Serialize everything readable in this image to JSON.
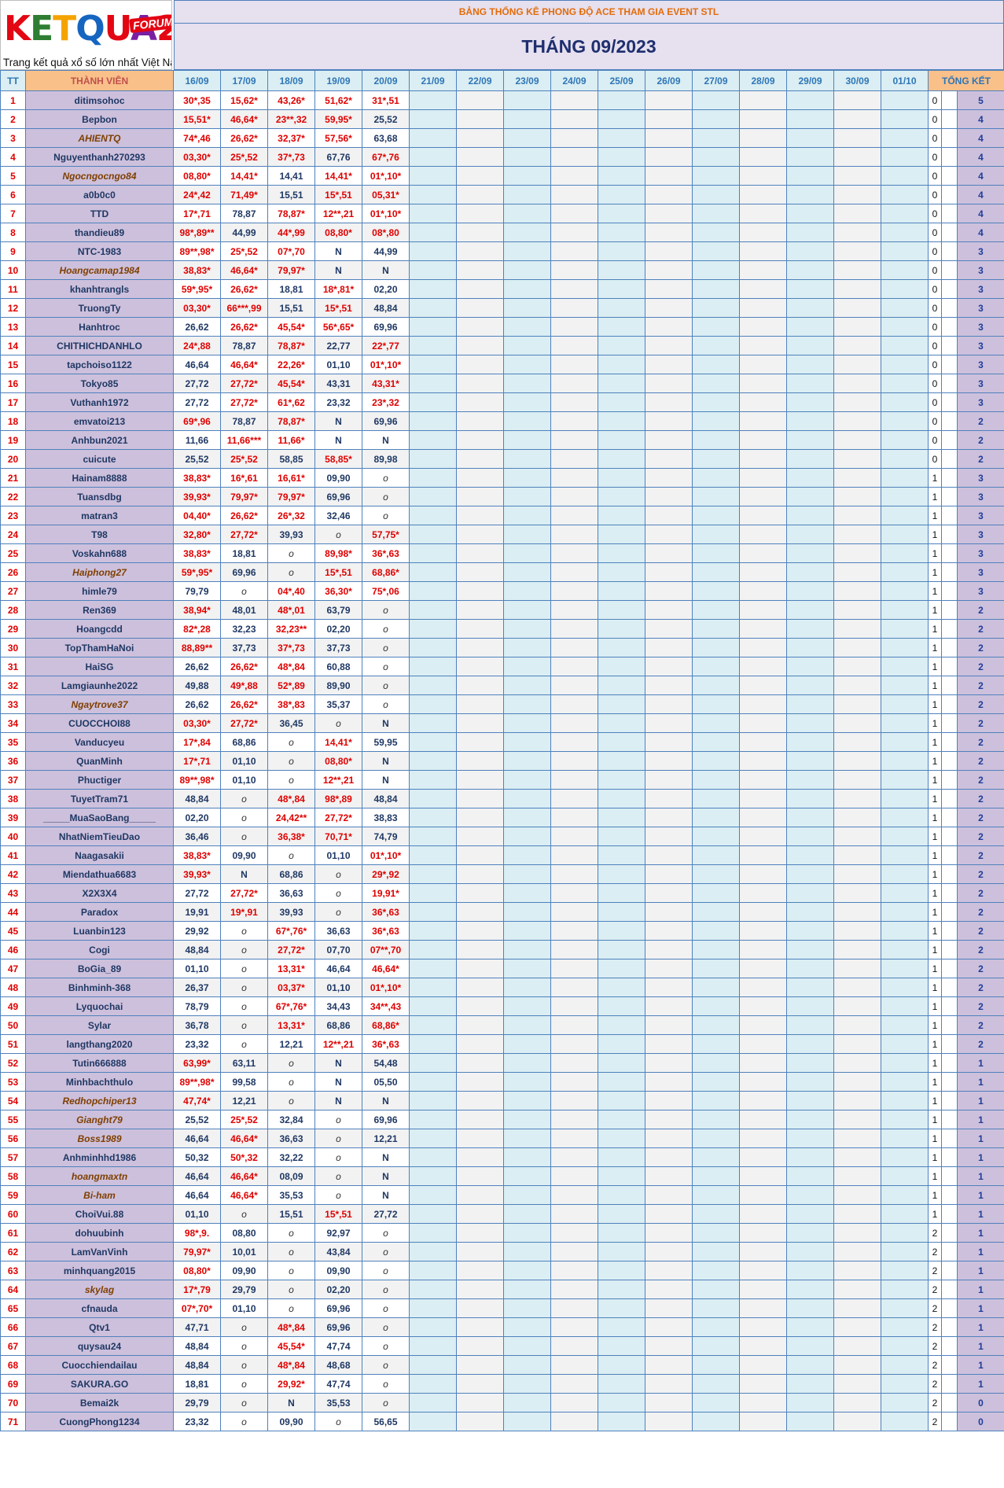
{
  "logo": {
    "text": "KETQUA2",
    "badge": "FORUM",
    "tagline": "Trang kết quả xổ số lớn nhất Việt Nam"
  },
  "top_title": "BẢNG THỐNG KÊ PHONG ĐỘ ACE THAM GIA EVENT STL",
  "month_title": "THÁNG 09/2023",
  "headers": {
    "tt": "TT",
    "member": "THÀNH VIÊN",
    "dates": [
      "16/09",
      "17/09",
      "18/09",
      "19/09",
      "20/09",
      "21/09",
      "22/09",
      "23/09",
      "24/09",
      "25/09",
      "26/09",
      "27/09",
      "28/09",
      "29/09",
      "30/09",
      "01/10"
    ],
    "total": "TỔNG KẾT"
  },
  "colors": {
    "hit": "#e00000",
    "normal": "#1f3864",
    "name_bg": "#cdc0dc",
    "header_orange": "#f9c089"
  },
  "rows": [
    {
      "tt": "1",
      "name": "ditimsohoc",
      "vals": [
        "30*,35",
        "15,62*",
        "43,26*",
        "51,62*",
        "31*,51"
      ],
      "t0": "0",
      "t1": "5"
    },
    {
      "tt": "2",
      "name": "Bepbon",
      "vals": [
        "15,51*",
        "46,64*",
        "23**,32",
        "59,95*",
        "25,52"
      ],
      "t0": "0",
      "t1": "4"
    },
    {
      "tt": "3",
      "name": "AHIENTQ",
      "italic": true,
      "vals": [
        "74*,46",
        "26,62*",
        "32,37*",
        "57,56*",
        "63,68"
      ],
      "t0": "0",
      "t1": "4"
    },
    {
      "tt": "4",
      "name": "Nguyenthanh270293",
      "vals": [
        "03,30*",
        "25*,52",
        "37*,73",
        "67,76",
        "67*,76"
      ],
      "t0": "0",
      "t1": "4"
    },
    {
      "tt": "5",
      "name": "Ngocngocngo84",
      "italic": true,
      "vals": [
        "08,80*",
        "14,41*",
        "14,41",
        "14,41*",
        "01*,10*"
      ],
      "t0": "0",
      "t1": "4"
    },
    {
      "tt": "6",
      "name": "a0b0c0",
      "vals": [
        "24*,42",
        "71,49*",
        "15,51",
        "15*,51",
        "05,31*"
      ],
      "t0": "0",
      "t1": "4"
    },
    {
      "tt": "7",
      "name": "TTD",
      "vals": [
        "17*,71",
        "78,87",
        "78,87*",
        "12**,21",
        "01*,10*"
      ],
      "t0": "0",
      "t1": "4"
    },
    {
      "tt": "8",
      "name": "thandieu89",
      "vals": [
        "98*,89**",
        "44,99",
        "44*,99",
        "08,80*",
        "08*,80"
      ],
      "t0": "0",
      "t1": "4"
    },
    {
      "tt": "9",
      "name": "NTC-1983",
      "vals": [
        "89**,98*",
        "25*,52",
        "07*,70",
        "N",
        "44,99"
      ],
      "t0": "0",
      "t1": "3"
    },
    {
      "tt": "10",
      "name": "Hoangcamap1984",
      "italic": true,
      "vals": [
        "38,83*",
        "46,64*",
        "79,97*",
        "N",
        "N"
      ],
      "t0": "0",
      "t1": "3"
    },
    {
      "tt": "11",
      "name": "khanhtrangls",
      "vals": [
        "59*,95*",
        "26,62*",
        "18,81",
        "18*,81*",
        "02,20"
      ],
      "t0": "0",
      "t1": "3"
    },
    {
      "tt": "12",
      "name": "TruongTy",
      "vals": [
        "03,30*",
        "66***,99",
        "15,51",
        "15*,51",
        "48,84"
      ],
      "t0": "0",
      "t1": "3"
    },
    {
      "tt": "13",
      "name": "Hanhtroc",
      "vals": [
        "26,62",
        "26,62*",
        "45,54*",
        "56*,65*",
        "69,96"
      ],
      "t0": "0",
      "t1": "3"
    },
    {
      "tt": "14",
      "name": "CHITHICHDANHLO",
      "vals": [
        "24*,88",
        "78,87",
        "78,87*",
        "22,77",
        "22*,77"
      ],
      "t0": "0",
      "t1": "3"
    },
    {
      "tt": "15",
      "name": "tapchoiso1122",
      "vals": [
        "46,64",
        "46,64*",
        "22,26*",
        "01,10",
        "01*,10*"
      ],
      "t0": "0",
      "t1": "3"
    },
    {
      "tt": "16",
      "name": "Tokyo85",
      "vals": [
        "27,72",
        "27,72*",
        "45,54*",
        "43,31",
        "43,31*"
      ],
      "t0": "0",
      "t1": "3"
    },
    {
      "tt": "17",
      "name": "Vuthanh1972",
      "vals": [
        "27,72",
        "27,72*",
        "61*,62",
        "23,32",
        "23*,32"
      ],
      "t0": "0",
      "t1": "3"
    },
    {
      "tt": "18",
      "name": "emvatoi213",
      "vals": [
        "69*,96",
        "78,87",
        "78,87*",
        "N",
        "69,96"
      ],
      "t0": "0",
      "t1": "2"
    },
    {
      "tt": "19",
      "name": "Anhbun2021",
      "vals": [
        "11,66",
        "11,66***",
        "11,66*",
        "N",
        "N"
      ],
      "t0": "0",
      "t1": "2"
    },
    {
      "tt": "20",
      "name": "cuicute",
      "vals": [
        "25,52",
        "25*,52",
        "58,85",
        "58,85*",
        "89,98"
      ],
      "t0": "0",
      "t1": "2"
    },
    {
      "tt": "21",
      "name": "Hainam8888",
      "vals": [
        "38,83*",
        "16*,61",
        "16,61*",
        "09,90",
        "o"
      ],
      "t0": "1",
      "t1": "3"
    },
    {
      "tt": "22",
      "name": "Tuansdbg",
      "vals": [
        "39,93*",
        "79,97*",
        "79,97*",
        "69,96",
        "o"
      ],
      "t0": "1",
      "t1": "3"
    },
    {
      "tt": "23",
      "name": "matran3",
      "vals": [
        "04,40*",
        "26,62*",
        "26*,32",
        "32,46",
        "o"
      ],
      "t0": "1",
      "t1": "3"
    },
    {
      "tt": "24",
      "name": "T98",
      "vals": [
        "32,80*",
        "27,72*",
        "39,93",
        "o",
        "57,75*"
      ],
      "t0": "1",
      "t1": "3"
    },
    {
      "tt": "25",
      "name": "Voskahn688",
      "vals": [
        "38,83*",
        "18,81",
        "o",
        "89,98*",
        "36*,63"
      ],
      "t0": "1",
      "t1": "3"
    },
    {
      "tt": "26",
      "name": "Haiphong27",
      "italic": true,
      "vals": [
        "59*,95*",
        "69,96",
        "o",
        "15*,51",
        "68,86*"
      ],
      "t0": "1",
      "t1": "3"
    },
    {
      "tt": "27",
      "name": "himle79",
      "vals": [
        "79,79",
        "o",
        "04*,40",
        "36,30*",
        "75*,06"
      ],
      "t0": "1",
      "t1": "3"
    },
    {
      "tt": "28",
      "name": "Ren369",
      "vals": [
        "38,94*",
        "48,01",
        "48*,01",
        "63,79",
        "o"
      ],
      "t0": "1",
      "t1": "2"
    },
    {
      "tt": "29",
      "name": "Hoangcdd",
      "vals": [
        "82*,28",
        "32,23",
        "32,23**",
        "02,20",
        "o"
      ],
      "t0": "1",
      "t1": "2"
    },
    {
      "tt": "30",
      "name": "TopThamHaNoi",
      "vals": [
        "88,89**",
        "37,73",
        "37*,73",
        "37,73",
        "o"
      ],
      "t0": "1",
      "t1": "2"
    },
    {
      "tt": "31",
      "name": "HaiSG",
      "vals": [
        "26,62",
        "26,62*",
        "48*,84",
        "60,88",
        "o"
      ],
      "t0": "1",
      "t1": "2"
    },
    {
      "tt": "32",
      "name": "Lamgiaunhe2022",
      "vals": [
        "49,88",
        "49*,88",
        "52*,89",
        "89,90",
        "o"
      ],
      "t0": "1",
      "t1": "2"
    },
    {
      "tt": "33",
      "name": "Ngaytrove37",
      "italic": true,
      "vals": [
        "26,62",
        "26,62*",
        "38*,83",
        "35,37",
        "o"
      ],
      "t0": "1",
      "t1": "2"
    },
    {
      "tt": "34",
      "name": "CUOCCHOI88",
      "vals": [
        "03,30*",
        "27,72*",
        "36,45",
        "o",
        "N"
      ],
      "t0": "1",
      "t1": "2"
    },
    {
      "tt": "35",
      "name": "Vanducyeu",
      "vals": [
        "17*,84",
        "68,86",
        "o",
        "14,41*",
        "59,95"
      ],
      "t0": "1",
      "t1": "2"
    },
    {
      "tt": "36",
      "name": "QuanMinh",
      "vals": [
        "17*,71",
        "01,10",
        "o",
        "08,80*",
        "N"
      ],
      "t0": "1",
      "t1": "2"
    },
    {
      "tt": "37",
      "name": "Phuctiger",
      "vals": [
        "89**,98*",
        "01,10",
        "o",
        "12**,21",
        "N"
      ],
      "t0": "1",
      "t1": "2"
    },
    {
      "tt": "38",
      "name": "TuyetTram71",
      "vals": [
        "48,84",
        "o",
        "48*,84",
        "98*,89",
        "48,84"
      ],
      "t0": "1",
      "t1": "2"
    },
    {
      "tt": "39",
      "name": "_____MuaSaoBang_____",
      "vals": [
        "02,20",
        "o",
        "24,42**",
        "27,72*",
        "38,83"
      ],
      "t0": "1",
      "t1": "2"
    },
    {
      "tt": "40",
      "name": "NhatNiemTieuDao",
      "vals": [
        "36,46",
        "o",
        "36,38*",
        "70,71*",
        "74,79"
      ],
      "t0": "1",
      "t1": "2"
    },
    {
      "tt": "41",
      "name": "Naagasakii",
      "vals": [
        "38,83*",
        "09,90",
        "o",
        "01,10",
        "01*,10*"
      ],
      "t0": "1",
      "t1": "2"
    },
    {
      "tt": "42",
      "name": "Miendathua6683",
      "vals": [
        "39,93*",
        "N",
        "68,86",
        "o",
        "29*,92"
      ],
      "t0": "1",
      "t1": "2"
    },
    {
      "tt": "43",
      "name": "X2X3X4",
      "vals": [
        "27,72",
        "27,72*",
        "36,63",
        "o",
        "19,91*"
      ],
      "t0": "1",
      "t1": "2"
    },
    {
      "tt": "44",
      "name": "Paradox",
      "vals": [
        "19,91",
        "19*,91",
        "39,93",
        "o",
        "36*,63"
      ],
      "t0": "1",
      "t1": "2"
    },
    {
      "tt": "45",
      "name": "Luanbin123",
      "vals": [
        "29,92",
        "o",
        "67*,76*",
        "36,63",
        "36*,63"
      ],
      "t0": "1",
      "t1": "2"
    },
    {
      "tt": "46",
      "name": "Cogi",
      "vals": [
        "48,84",
        "o",
        "27,72*",
        "07,70",
        "07**,70"
      ],
      "t0": "1",
      "t1": "2"
    },
    {
      "tt": "47",
      "name": "BoGia_89",
      "vals": [
        "01,10",
        "o",
        "13,31*",
        "46,64",
        "46,64*"
      ],
      "t0": "1",
      "t1": "2"
    },
    {
      "tt": "48",
      "name": "Binhminh-368",
      "vals": [
        "26,37",
        "o",
        "03,37*",
        "01,10",
        "01*,10*"
      ],
      "t0": "1",
      "t1": "2"
    },
    {
      "tt": "49",
      "name": "Lyquochai",
      "vals": [
        "78,79",
        "o",
        "67*,76*",
        "34,43",
        "34**,43"
      ],
      "t0": "1",
      "t1": "2"
    },
    {
      "tt": "50",
      "name": "Sylar",
      "vals": [
        "36,78",
        "o",
        "13,31*",
        "68,86",
        "68,86*"
      ],
      "t0": "1",
      "t1": "2"
    },
    {
      "tt": "51",
      "name": "langthang2020",
      "vals": [
        "23,32",
        "o",
        "12,21",
        "12**,21",
        "36*,63"
      ],
      "t0": "1",
      "t1": "2"
    },
    {
      "tt": "52",
      "name": "Tutin666888",
      "vals": [
        "63,99*",
        "63,11",
        "o",
        "N",
        "54,48"
      ],
      "t0": "1",
      "t1": "1"
    },
    {
      "tt": "53",
      "name": "Minhbachthulo",
      "vals": [
        "89**,98*",
        "99,58",
        "o",
        "N",
        "05,50"
      ],
      "t0": "1",
      "t1": "1"
    },
    {
      "tt": "54",
      "name": "Redhopchiper13",
      "italic": true,
      "vals": [
        "47,74*",
        "12,21",
        "o",
        "N",
        "N"
      ],
      "t0": "1",
      "t1": "1"
    },
    {
      "tt": "55",
      "name": "Gianght79",
      "italic": true,
      "vals": [
        "25,52",
        "25*,52",
        "32,84",
        "o",
        "69,96"
      ],
      "t0": "1",
      "t1": "1"
    },
    {
      "tt": "56",
      "name": "Boss1989",
      "italic": true,
      "vals": [
        "46,64",
        "46,64*",
        "36,63",
        "o",
        "12,21"
      ],
      "t0": "1",
      "t1": "1"
    },
    {
      "tt": "57",
      "name": "Anhminhhd1986",
      "vals": [
        "50,32",
        "50*,32",
        "32,22",
        "o",
        "N"
      ],
      "t0": "1",
      "t1": "1"
    },
    {
      "tt": "58",
      "name": "hoangmaxtn",
      "italic": true,
      "vals": [
        "46,64",
        "46,64*",
        "08,09",
        "o",
        "N"
      ],
      "t0": "1",
      "t1": "1"
    },
    {
      "tt": "59",
      "name": "Bi-ham",
      "italic": true,
      "vals": [
        "46,64",
        "46,64*",
        "35,53",
        "o",
        "N"
      ],
      "t0": "1",
      "t1": "1"
    },
    {
      "tt": "60",
      "name": "ChoiVui.88",
      "vals": [
        "01,10",
        "o",
        "15,51",
        "15*,51",
        "27,72"
      ],
      "t0": "1",
      "t1": "1"
    },
    {
      "tt": "61",
      "name": "dohuubinh",
      "vals": [
        "98*,9.",
        "08,80",
        "o",
        "92,97",
        "o"
      ],
      "t0": "2",
      "t1": "1"
    },
    {
      "tt": "62",
      "name": "LamVanVinh",
      "vals": [
        "79,97*",
        "10,01",
        "o",
        "43,84",
        "o"
      ],
      "t0": "2",
      "t1": "1"
    },
    {
      "tt": "63",
      "name": "minhquang2015",
      "vals": [
        "08,80*",
        "09,90",
        "o",
        "09,90",
        "o"
      ],
      "t0": "2",
      "t1": "1"
    },
    {
      "tt": "64",
      "name": "skylag",
      "italic": true,
      "vals": [
        "17*,79",
        "29,79",
        "o",
        "02,20",
        "o"
      ],
      "t0": "2",
      "t1": "1"
    },
    {
      "tt": "65",
      "name": "cfnauda",
      "vals": [
        "07*,70*",
        "01,10",
        "o",
        "69,96",
        "o"
      ],
      "t0": "2",
      "t1": "1"
    },
    {
      "tt": "66",
      "name": "Qtv1",
      "vals": [
        "47,71",
        "o",
        "48*,84",
        "69,96",
        "o"
      ],
      "t0": "2",
      "t1": "1"
    },
    {
      "tt": "67",
      "name": "quysau24",
      "vals": [
        "48,84",
        "o",
        "45,54*",
        "47,74",
        "o"
      ],
      "t0": "2",
      "t1": "1"
    },
    {
      "tt": "68",
      "name": "Cuocchiendailau",
      "vals": [
        "48,84",
        "o",
        "48*,84",
        "48,68",
        "o"
      ],
      "t0": "2",
      "t1": "1"
    },
    {
      "tt": "69",
      "name": "SAKURA.GO",
      "vals": [
        "18,81",
        "o",
        "29,92*",
        "47,74",
        "o"
      ],
      "t0": "2",
      "t1": "1"
    },
    {
      "tt": "70",
      "name": "Bemai2k",
      "vals": [
        "29,79",
        "o",
        "N",
        "35,53",
        "o"
      ],
      "t0": "2",
      "t1": "0"
    },
    {
      "tt": "71",
      "name": "CuongPhong1234",
      "vals": [
        "23,32",
        "o",
        "09,90",
        "o",
        "56,65"
      ],
      "t0": "2",
      "t1": "0"
    }
  ]
}
